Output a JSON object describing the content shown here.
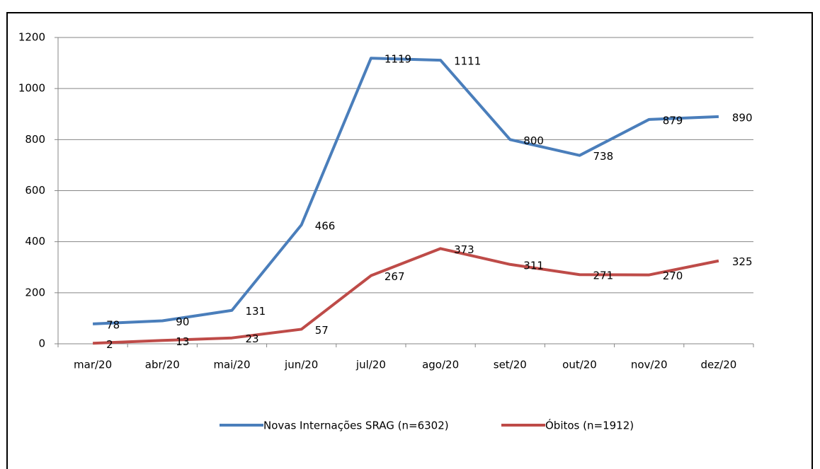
{
  "chart_data": {
    "type": "line",
    "categories": [
      "mar/20",
      "abr/20",
      "mai/20",
      "jun/20",
      "jul/20",
      "ago/20",
      "set/20",
      "out/20",
      "nov/20",
      "dez/20"
    ],
    "series": [
      {
        "name": "Novas Internações SRAG (n=6302)",
        "color": "#4a7ebb",
        "values": [
          78,
          90,
          131,
          466,
          1119,
          1111,
          800,
          738,
          879,
          890
        ]
      },
      {
        "name": "Óbitos (n=1912)",
        "color": "#be4b48",
        "values": [
          2,
          13,
          23,
          57,
          267,
          373,
          311,
          271,
          270,
          325
        ]
      }
    ],
    "ylim": [
      0,
      1200
    ],
    "yticks": [
      0,
      200,
      400,
      600,
      800,
      1000,
      1200
    ],
    "grid": true,
    "legend": "bottom"
  }
}
